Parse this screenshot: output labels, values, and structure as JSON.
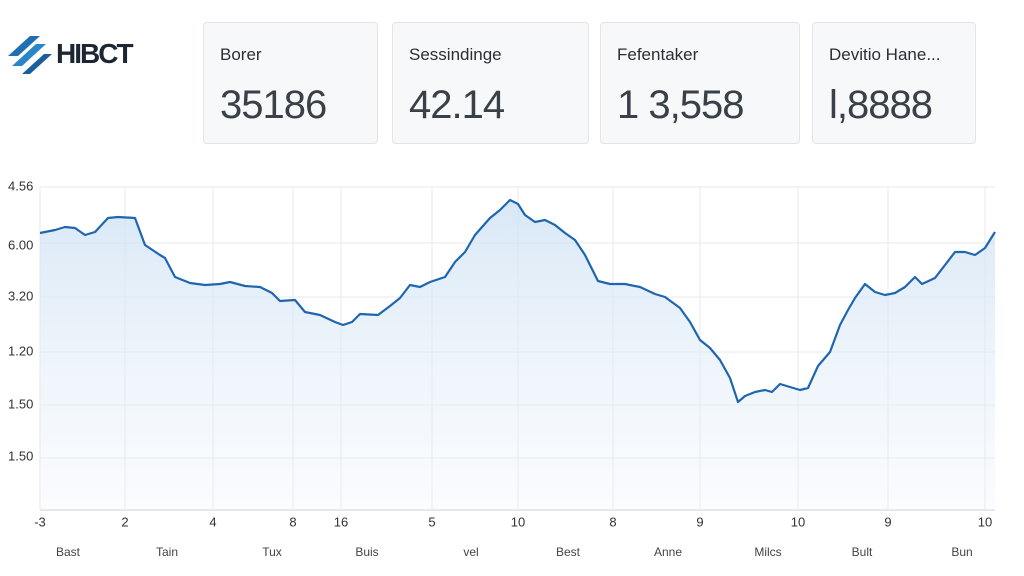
{
  "header": {
    "logo": "HIBCT"
  },
  "cards": [
    {
      "label": "Borer",
      "value": "35186"
    },
    {
      "label": "Sessindinge",
      "value": "42.14"
    },
    {
      "label": "Fefentaker",
      "value": "1 3,558"
    },
    {
      "label": "Devitio Hane...",
      "value": "l,8888"
    }
  ],
  "chart": {
    "y_labels": [
      "4.56",
      "6.00",
      "3.20",
      "1.20",
      "1.50",
      "1.50"
    ],
    "x_labels": [
      "-3",
      "2",
      "4",
      "8",
      "16",
      "5",
      "10",
      "8",
      "9",
      "10",
      "9",
      "10"
    ],
    "x_names": [
      "Bast",
      "Tain",
      "Tux",
      "Buis",
      "vel",
      "Best",
      "Anne",
      "Milcs",
      "Bult",
      "Bun"
    ]
  }
}
